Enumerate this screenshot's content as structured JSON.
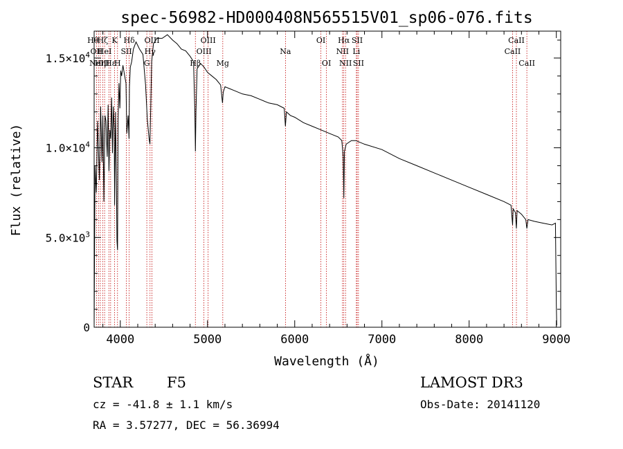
{
  "chart_data": {
    "type": "line",
    "title": "spec-56982-HD000408N565515V01_sp06-076.fits",
    "xlabel": "Wavelength (Å)",
    "ylabel": "Flux (relative)",
    "xlim": [
      3700,
      9050
    ],
    "ylim": [
      0,
      16500
    ],
    "x_ticks": [
      4000,
      5000,
      6000,
      7000,
      8000,
      9000
    ],
    "x_tick_labels": [
      "4000",
      "5000",
      "6000",
      "7000",
      "8000",
      "9000"
    ],
    "y_ticks": [
      0,
      5000,
      10000,
      15000
    ],
    "y_tick_labels": [
      {
        "mantissa": "0",
        "exp": ""
      },
      {
        "mantissa": "5.0×10",
        "exp": "3"
      },
      {
        "mantissa": "1.0×10",
        "exp": "4"
      },
      {
        "mantissa": "1.5×10",
        "exp": "4"
      }
    ],
    "series": [
      {
        "name": "spectrum",
        "x": [
          3700,
          3710,
          3725,
          3740,
          3760,
          3775,
          3790,
          3800,
          3812,
          3825,
          3835,
          3850,
          3860,
          3870,
          3880,
          3890,
          3900,
          3910,
          3920,
          3930,
          3935,
          3945,
          3955,
          3962,
          3968,
          3975,
          3985,
          3995,
          4005,
          4015,
          4030,
          4050,
          4065,
          4075,
          4090,
          4100,
          4105,
          4115,
          4130,
          4150,
          4180,
          4220,
          4260,
          4290,
          4310,
          4330,
          4340,
          4350,
          4360,
          4380,
          4420,
          4480,
          4540,
          4600,
          4650,
          4700,
          4750,
          4800,
          4840,
          4855,
          4861,
          4868,
          4880,
          4920,
          4960,
          5000,
          5050,
          5100,
          5150,
          5172,
          5180,
          5200,
          5250,
          5300,
          5400,
          5500,
          5600,
          5700,
          5800,
          5880,
          5893,
          5905,
          5950,
          6000,
          6100,
          6200,
          6300,
          6400,
          6500,
          6540,
          6556,
          6563,
          6570,
          6590,
          6650,
          6700,
          6800,
          7000,
          7200,
          7400,
          7600,
          7800,
          8000,
          8200,
          8400,
          8480,
          8498,
          8505,
          8530,
          8542,
          8550,
          8600,
          8650,
          8662,
          8675,
          8750,
          8850,
          8950,
          8990,
          9000,
          9005
        ],
        "values": [
          100,
          9000,
          7500,
          11500,
          8200,
          12300,
          9200,
          11800,
          7000,
          11800,
          11500,
          9500,
          12400,
          8700,
          11000,
          10500,
          12800,
          9700,
          12300,
          11000,
          6800,
          12000,
          8500,
          4800,
          4300,
          11500,
          13600,
          12200,
          14300,
          14000,
          14600,
          14000,
          13600,
          10800,
          11800,
          10500,
          13400,
          14500,
          14800,
          15500,
          15900,
          15500,
          15200,
          13500,
          11600,
          10500,
          10200,
          12500,
          14800,
          15800,
          16100,
          16100,
          16300,
          16000,
          15800,
          15500,
          15400,
          15100,
          14800,
          12000,
          9800,
          12000,
          14400,
          14700,
          14500,
          14200,
          14000,
          13800,
          13500,
          12500,
          13100,
          13400,
          13300,
          13200,
          13000,
          12900,
          12700,
          12500,
          12400,
          12200,
          11200,
          12000,
          11800,
          11700,
          11400,
          11200,
          11000,
          10800,
          10600,
          10400,
          9500,
          7200,
          9800,
          10200,
          10400,
          10400,
          10200,
          9900,
          9400,
          9000,
          8600,
          8200,
          7800,
          7400,
          7000,
          6800,
          5700,
          6600,
          6400,
          5500,
          6500,
          6300,
          6000,
          5500,
          6000,
          5900,
          5800,
          5700,
          5800,
          1200,
          100
        ]
      }
    ],
    "line_markers": [
      {
        "wavelength": 3727,
        "label": "OII",
        "row": 2,
        "align": "center"
      },
      {
        "wavelength": 3750,
        "label": "Hθ",
        "row": 1,
        "align": "right"
      },
      {
        "wavelength": 3771,
        "label": "Hη",
        "row": 3,
        "align": "center"
      },
      {
        "wavelength": 3798,
        "label": "Hζ",
        "row": 1,
        "align": "center"
      },
      {
        "wavelength": 3820,
        "label": "HeI",
        "row": 2,
        "align": "center"
      },
      {
        "wavelength": 3869,
        "label": "NeIII",
        "row": 3,
        "align": "left"
      },
      {
        "wavelength": 3889,
        "label": "Hε",
        "row": 3,
        "align": "center"
      },
      {
        "wavelength": 3934,
        "label": "K",
        "row": 1,
        "align": "center"
      },
      {
        "wavelength": 3968,
        "label": "H",
        "row": 3,
        "align": "center"
      },
      {
        "wavelength": 4070,
        "label": "SII",
        "row": 2,
        "align": "center"
      },
      {
        "wavelength": 4102,
        "label": "Hδ",
        "row": 1,
        "align": "center"
      },
      {
        "wavelength": 4304,
        "label": "G",
        "row": 3,
        "align": "center"
      },
      {
        "wavelength": 4341,
        "label": "Hγ",
        "row": 2,
        "align": "center"
      },
      {
        "wavelength": 4363,
        "label": "OIII",
        "row": 1,
        "align": "center"
      },
      {
        "wavelength": 4861,
        "label": "Hβ",
        "row": 3,
        "align": "center"
      },
      {
        "wavelength": 4959,
        "label": "OIII",
        "row": 2,
        "align": "center"
      },
      {
        "wavelength": 5007,
        "label": "OIII",
        "row": 1,
        "align": "center"
      },
      {
        "wavelength": 5175,
        "label": "Mg",
        "row": 3,
        "align": "center"
      },
      {
        "wavelength": 5894,
        "label": "Na",
        "row": 2,
        "align": "center"
      },
      {
        "wavelength": 6300,
        "label": "OI",
        "row": 1,
        "align": "center"
      },
      {
        "wavelength": 6364,
        "label": "OI",
        "row": 3,
        "align": "center"
      },
      {
        "wavelength": 6548,
        "label": "NII",
        "row": 2,
        "align": "center"
      },
      {
        "wavelength": 6563,
        "label": "Hα",
        "row": 1,
        "align": "center"
      },
      {
        "wavelength": 6583,
        "label": "NII",
        "row": 3,
        "align": "center"
      },
      {
        "wavelength": 6707,
        "label": "Li",
        "row": 2,
        "align": "center"
      },
      {
        "wavelength": 6716,
        "label": "SII",
        "row": 1,
        "align": "center"
      },
      {
        "wavelength": 6731,
        "label": "SII",
        "row": 3,
        "align": "center"
      },
      {
        "wavelength": 8498,
        "label": "CaII",
        "row": 2,
        "align": "center"
      },
      {
        "wavelength": 8542,
        "label": "CaII",
        "row": 1,
        "align": "center"
      },
      {
        "wavelength": 8662,
        "label": "CaII",
        "row": 3,
        "align": "center"
      }
    ],
    "colors": {
      "spectrum": "#000000",
      "markers": "#c00000",
      "axes": "#000000"
    }
  },
  "info": {
    "object_class": "STAR",
    "subclass": "F5",
    "survey": "LAMOST DR3",
    "cz": "cz = -41.8 ± 1.1 km/s",
    "obs_date": "Obs-Date: 20141120",
    "coords": "RA =   3.57277, DEC =  56.36994"
  }
}
